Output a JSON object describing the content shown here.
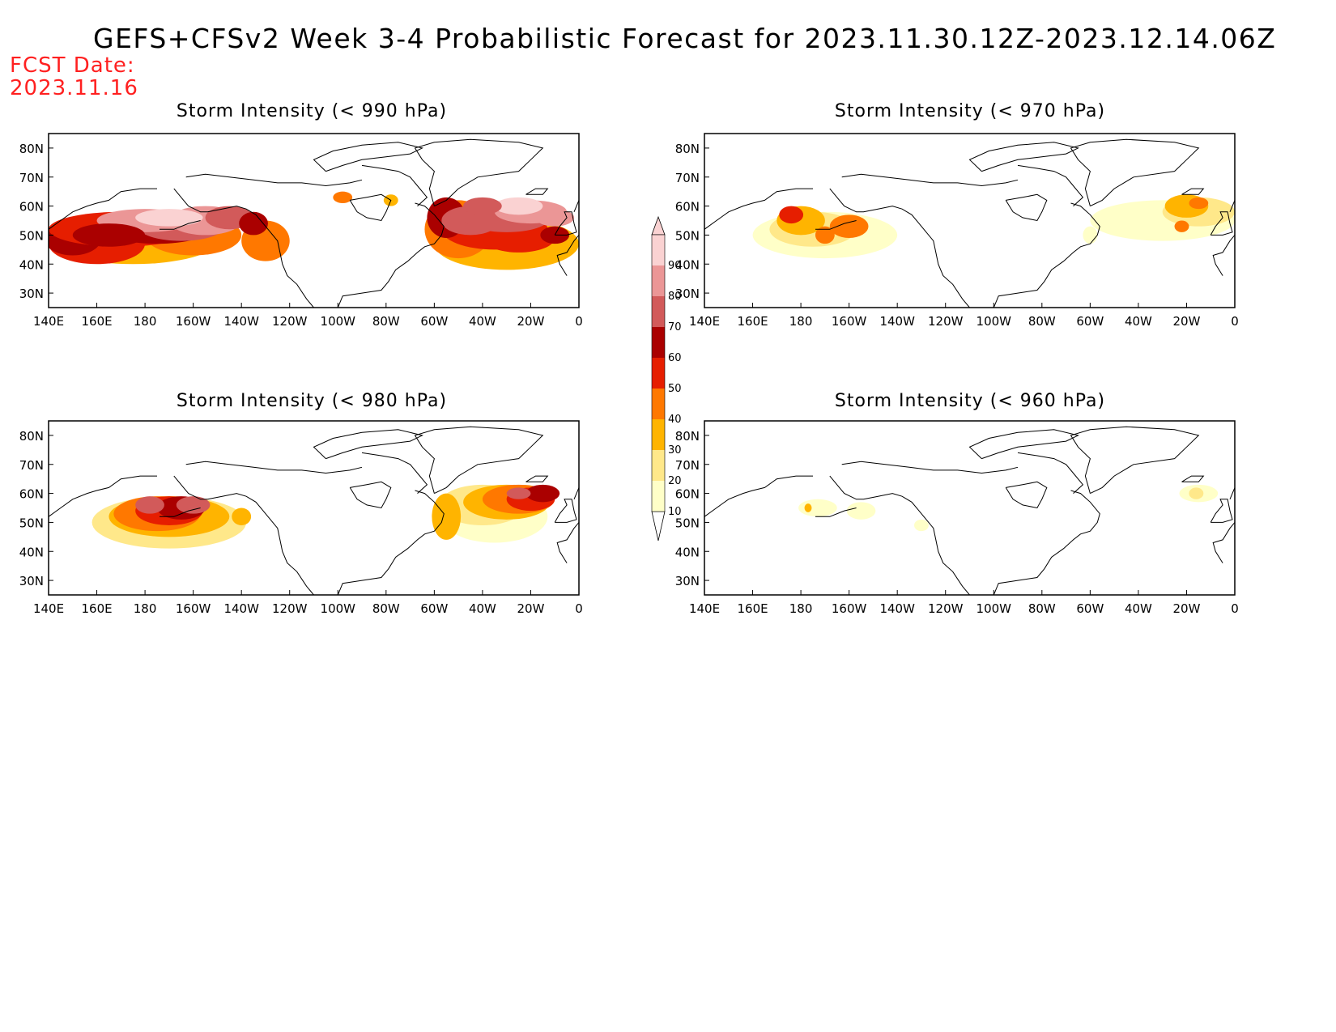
{
  "header": {
    "title": "GEFS+CFSv2 Week 3-4 Probabilistic Forecast for 2023.11.30.12Z-2023.12.14.06Z",
    "fcst_label": "FCST Date:",
    "fcst_date": "2023.11.16"
  },
  "axes": {
    "lon_ticks": [
      "140E",
      "160E",
      "180",
      "160W",
      "140W",
      "120W",
      "100W",
      "80W",
      "60W",
      "40W",
      "20W",
      "0"
    ],
    "lat_ticks": [
      "80N",
      "70N",
      "60N",
      "50N",
      "40N",
      "30N"
    ]
  },
  "colorbar": {
    "levels": [
      "10",
      "20",
      "30",
      "40",
      "50",
      "60",
      "70",
      "80",
      "90"
    ],
    "colors": [
      "#ffffc8",
      "#ffe88a",
      "#ffb400",
      "#ff7800",
      "#e61e00",
      "#aa0000",
      "#d25a5a",
      "#eb9696",
      "#fad2d2"
    ]
  },
  "panels": [
    {
      "id": "p990",
      "title": "Storm Intensity (< 990 hPa)"
    },
    {
      "id": "p970",
      "title": "Storm Intensity (< 970 hPa)"
    },
    {
      "id": "p980",
      "title": "Storm Intensity (< 980 hPa)"
    },
    {
      "id": "p960",
      "title": "Storm Intensity (< 960 hPa)"
    }
  ]
}
